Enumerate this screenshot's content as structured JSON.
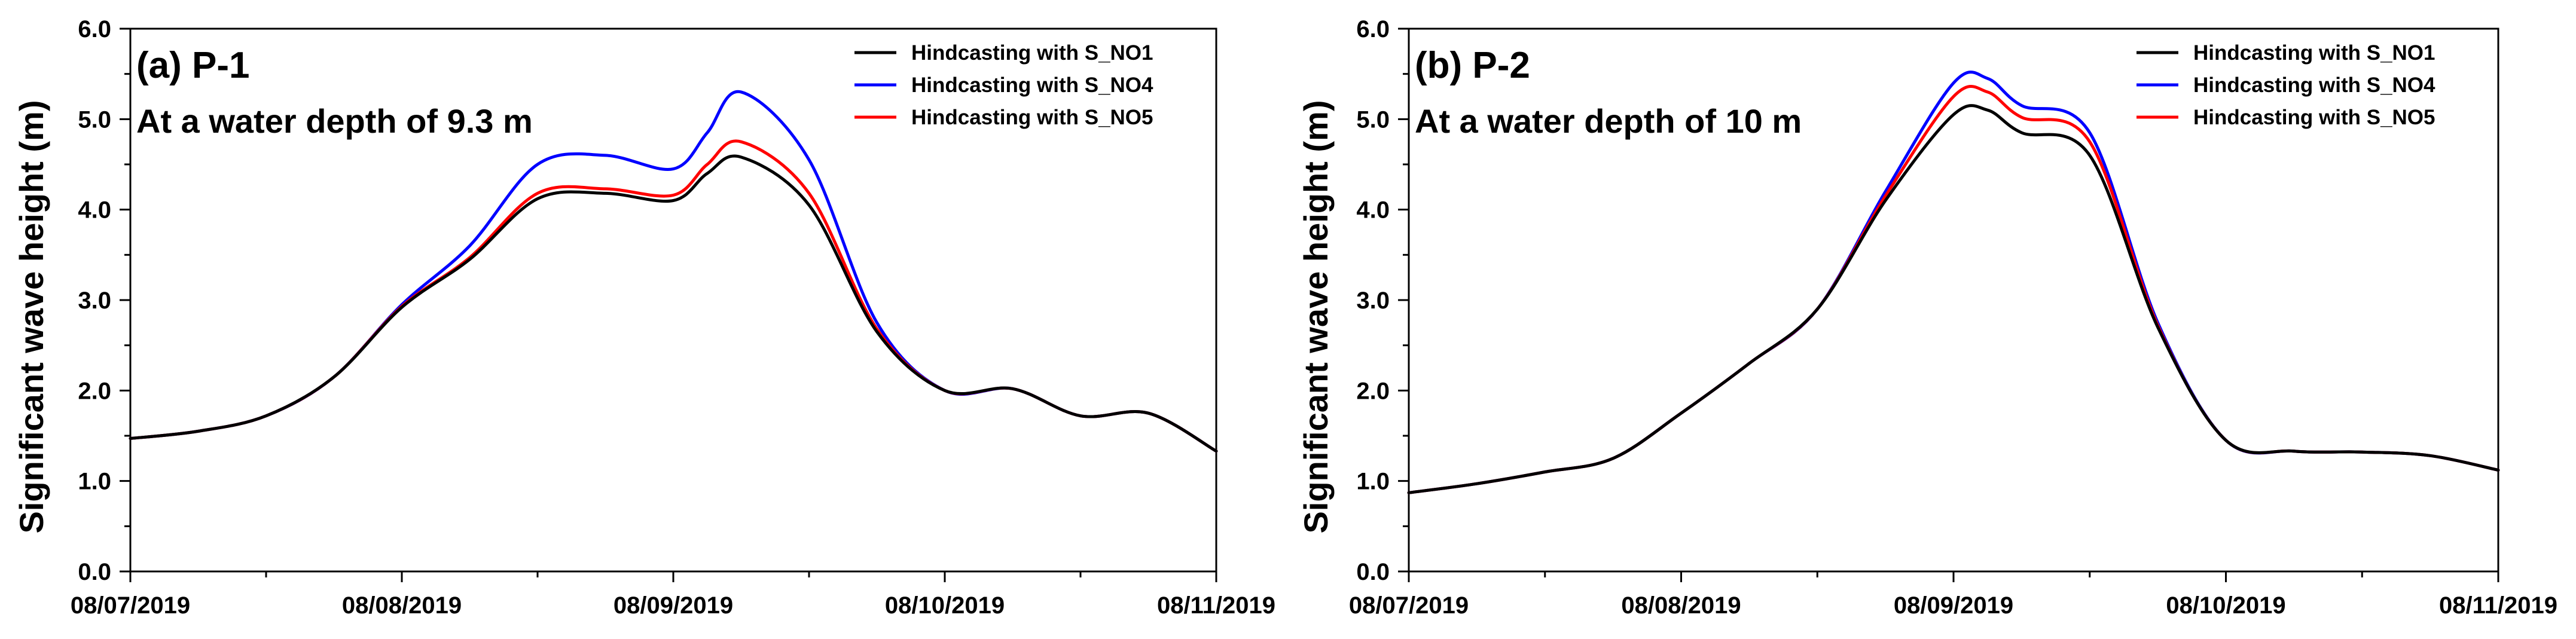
{
  "chart_data": [
    {
      "type": "line",
      "title": "(a) P-1",
      "subtitle": "At a water depth of 9.3 m",
      "xlabel": "",
      "ylabel": "Significant wave height (m)",
      "xlim": [
        "08/07/2019",
        "08/11/2019"
      ],
      "ylim": [
        0,
        6
      ],
      "x_ticks": [
        "08/07/2019",
        "08/08/2019",
        "08/09/2019",
        "08/10/2019",
        "08/11/2019"
      ],
      "y_ticks": [
        "0.0",
        "1.0",
        "2.0",
        "3.0",
        "4.0",
        "5.0",
        "6.0"
      ],
      "grid": false,
      "legend_position": "top-right",
      "series": [
        {
          "name": "Hindcasting with S_NO1",
          "color": "#000000",
          "x": [
            "08/07/2019 00:00",
            "08/07/2019 06:00",
            "08/07/2019 12:00",
            "08/07/2019 18:00",
            "08/08/2019 00:00",
            "08/08/2019 06:00",
            "08/08/2019 12:00",
            "08/08/2019 18:00",
            "08/09/2019 00:00",
            "08/09/2019 03:00",
            "08/09/2019 06:00",
            "08/09/2019 12:00",
            "08/09/2019 18:00",
            "08/10/2019 00:00",
            "08/10/2019 06:00",
            "08/10/2019 12:00",
            "08/10/2019 18:00",
            "08/11/2019 00:00"
          ],
          "y": [
            1.47,
            1.55,
            1.72,
            2.15,
            2.92,
            3.45,
            4.12,
            4.18,
            4.1,
            4.4,
            4.58,
            4.05,
            2.65,
            2.0,
            2.02,
            1.72,
            1.75,
            1.33
          ]
        },
        {
          "name": "Hindcasting with S_NO4",
          "color": "#0000ff",
          "x": [
            "08/07/2019 00:00",
            "08/07/2019 06:00",
            "08/07/2019 12:00",
            "08/07/2019 18:00",
            "08/08/2019 00:00",
            "08/08/2019 06:00",
            "08/08/2019 12:00",
            "08/08/2019 18:00",
            "08/09/2019 00:00",
            "08/09/2019 03:00",
            "08/09/2019 06:00",
            "08/09/2019 12:00",
            "08/09/2019 18:00",
            "08/10/2019 00:00",
            "08/10/2019 06:00",
            "08/10/2019 12:00",
            "08/10/2019 18:00",
            "08/11/2019 00:00"
          ],
          "y": [
            1.47,
            1.55,
            1.72,
            2.15,
            2.95,
            3.6,
            4.5,
            4.6,
            4.45,
            4.85,
            5.3,
            4.55,
            2.75,
            2.0,
            2.02,
            1.72,
            1.75,
            1.33
          ]
        },
        {
          "name": "Hindcasting with S_NO5",
          "color": "#ff0000",
          "x": [
            "08/07/2019 00:00",
            "08/07/2019 06:00",
            "08/07/2019 12:00",
            "08/07/2019 18:00",
            "08/08/2019 00:00",
            "08/08/2019 06:00",
            "08/08/2019 12:00",
            "08/08/2019 18:00",
            "08/09/2019 00:00",
            "08/09/2019 03:00",
            "08/09/2019 06:00",
            "08/09/2019 12:00",
            "08/09/2019 18:00",
            "08/10/2019 00:00",
            "08/10/2019 06:00",
            "08/10/2019 12:00",
            "08/10/2019 18:00",
            "08/11/2019 00:00"
          ],
          "y": [
            1.47,
            1.55,
            1.72,
            2.15,
            2.93,
            3.47,
            4.18,
            4.23,
            4.16,
            4.5,
            4.75,
            4.18,
            2.68,
            2.0,
            2.02,
            1.72,
            1.75,
            1.33
          ]
        }
      ]
    },
    {
      "type": "line",
      "title": "(b) P-2",
      "subtitle": "At a water depth of 10 m",
      "xlabel": "",
      "ylabel": "Significant wave height (m)",
      "xlim": [
        "08/07/2019",
        "08/11/2019"
      ],
      "ylim": [
        0,
        6
      ],
      "x_ticks": [
        "08/07/2019",
        "08/08/2019",
        "08/09/2019",
        "08/10/2019",
        "08/11/2019"
      ],
      "y_ticks": [
        "0.0",
        "1.0",
        "2.0",
        "3.0",
        "4.0",
        "5.0",
        "6.0"
      ],
      "grid": false,
      "legend_position": "top-right",
      "series": [
        {
          "name": "Hindcasting with S_NO1",
          "color": "#000000",
          "x": [
            "08/07/2019 00:00",
            "08/07/2019 06:00",
            "08/07/2019 12:00",
            "08/07/2019 18:00",
            "08/08/2019 00:00",
            "08/08/2019 06:00",
            "08/08/2019 12:00",
            "08/08/2019 18:00",
            "08/09/2019 00:00",
            "08/09/2019 03:00",
            "08/09/2019 06:00",
            "08/09/2019 12:00",
            "08/09/2019 18:00",
            "08/10/2019 00:00",
            "08/10/2019 06:00",
            "08/10/2019 12:00",
            "08/10/2019 18:00",
            "08/11/2019 00:00"
          ],
          "y": [
            0.87,
            0.97,
            1.1,
            1.25,
            1.75,
            2.3,
            2.9,
            4.1,
            5.05,
            5.1,
            4.85,
            4.6,
            2.7,
            1.45,
            1.33,
            1.32,
            1.28,
            1.12
          ]
        },
        {
          "name": "Hindcasting with S_NO4",
          "color": "#0000ff",
          "x": [
            "08/07/2019 00:00",
            "08/07/2019 06:00",
            "08/07/2019 12:00",
            "08/07/2019 18:00",
            "08/08/2019 00:00",
            "08/08/2019 06:00",
            "08/08/2019 12:00",
            "08/08/2019 18:00",
            "08/09/2019 00:00",
            "08/09/2019 03:00",
            "08/09/2019 06:00",
            "08/09/2019 12:00",
            "08/09/2019 18:00",
            "08/10/2019 00:00",
            "08/10/2019 06:00",
            "08/10/2019 12:00",
            "08/10/2019 18:00",
            "08/11/2019 00:00"
          ],
          "y": [
            0.87,
            0.97,
            1.1,
            1.25,
            1.75,
            2.3,
            2.9,
            4.2,
            5.4,
            5.45,
            5.15,
            4.85,
            2.75,
            1.45,
            1.33,
            1.32,
            1.28,
            1.12
          ]
        },
        {
          "name": "Hindcasting with S_NO5",
          "color": "#ff0000",
          "x": [
            "08/07/2019 00:00",
            "08/07/2019 06:00",
            "08/07/2019 12:00",
            "08/07/2019 18:00",
            "08/08/2019 00:00",
            "08/08/2019 06:00",
            "08/08/2019 12:00",
            "08/08/2019 18:00",
            "08/09/2019 00:00",
            "08/09/2019 03:00",
            "08/09/2019 06:00",
            "08/09/2019 12:00",
            "08/09/2019 18:00",
            "08/10/2019 00:00",
            "08/10/2019 06:00",
            "08/10/2019 12:00",
            "08/10/2019 18:00",
            "08/11/2019 00:00"
          ],
          "y": [
            0.87,
            0.97,
            1.1,
            1.25,
            1.75,
            2.3,
            2.9,
            4.15,
            5.25,
            5.3,
            5.02,
            4.75,
            2.72,
            1.45,
            1.33,
            1.32,
            1.28,
            1.12
          ]
        }
      ]
    }
  ]
}
